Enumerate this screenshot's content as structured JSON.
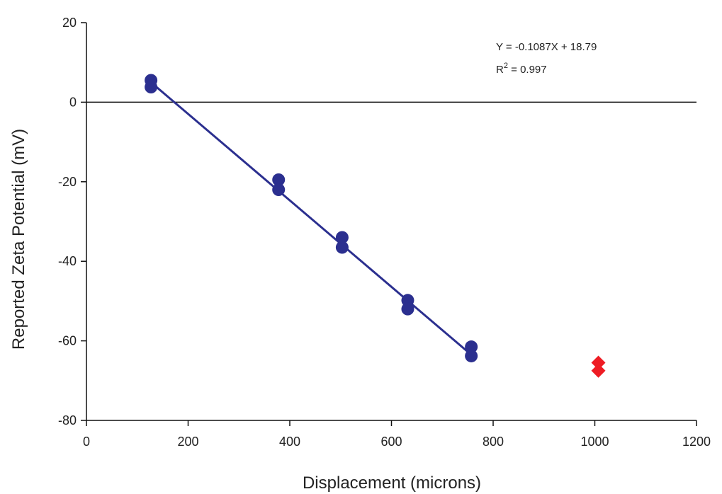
{
  "chart_data": {
    "type": "scatter",
    "title": "",
    "xlabel": "Displacement (microns)",
    "ylabel": "Reported Zeta Potential (mV)",
    "xlim": [
      0,
      1200
    ],
    "ylim": [
      -80,
      20
    ],
    "xticks": [
      0,
      200,
      400,
      600,
      800,
      1000,
      1200
    ],
    "yticks": [
      -80,
      -60,
      -40,
      -20,
      0,
      20
    ],
    "grid": false,
    "zero_line": true,
    "series": [
      {
        "marker": "circle",
        "color": "#2b2f8f",
        "points": [
          {
            "x": 127,
            "y": 5.5
          },
          {
            "x": 127,
            "y": 3.8
          },
          {
            "x": 378,
            "y": -19.5
          },
          {
            "x": 378,
            "y": -22
          },
          {
            "x": 503,
            "y": -34
          },
          {
            "x": 503,
            "y": -36.5
          },
          {
            "x": 632,
            "y": -49.8
          },
          {
            "x": 632,
            "y": -52
          },
          {
            "x": 757,
            "y": -61.5
          },
          {
            "x": 757,
            "y": -63.8
          }
        ]
      },
      {
        "marker": "diamond",
        "color": "#ee1c24",
        "points": [
          {
            "x": 1007,
            "y": -65.5
          },
          {
            "x": 1007,
            "y": -67.5
          }
        ]
      }
    ],
    "fit_line": {
      "slope": -0.1087,
      "intercept": 18.79,
      "x_range": [
        127,
        757
      ],
      "color": "#2b2f8f"
    },
    "annotations": {
      "equation": "Y = -0.1087X + 18.79",
      "r2_prefix": "R",
      "r2_sup": "2",
      "r2_value": " = 0.997"
    }
  }
}
